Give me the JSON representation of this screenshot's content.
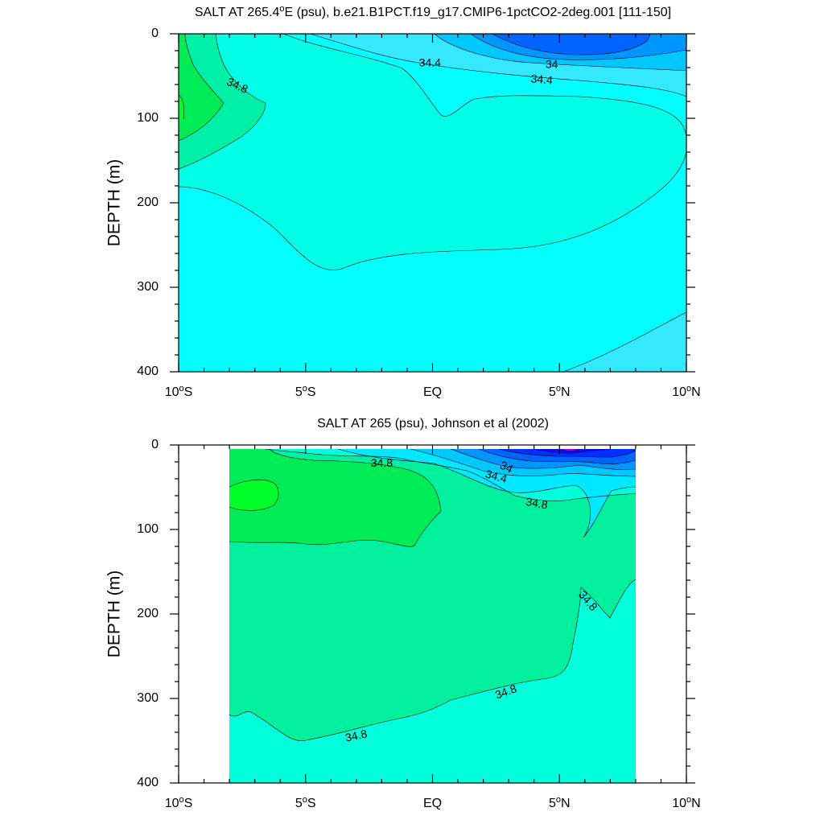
{
  "chart_data": [
    {
      "type": "contour",
      "title": "SALT AT 265.4°E (psu), b.e21.B1PCT.f19_g17.CMIP6-1pctCO2-2deg.001 [111-150]",
      "title_parts": {
        "pre": "SALT AT 265.4",
        "post": "E (psu), b.e21.B1PCT.f19_g17.CMIP6-1pctCO2-2deg.001 [111-150]"
      },
      "ylabel": "DEPTH (m)",
      "xlim": [
        -10,
        10
      ],
      "ylim": [
        400,
        0
      ],
      "x_ticks": [
        {
          "value": -10,
          "num": "10",
          "dir": "S"
        },
        {
          "value": -5,
          "num": "5",
          "dir": "S"
        },
        {
          "value": 0,
          "num": "EQ",
          "dir": ""
        },
        {
          "value": 5,
          "num": "5",
          "dir": "N"
        },
        {
          "value": 10,
          "num": "10",
          "dir": "N"
        }
      ],
      "y_ticks": [
        "0",
        "100",
        "200",
        "300",
        "400"
      ],
      "contour_labels": [
        {
          "text": "34.4",
          "x": -0.1,
          "y": 35,
          "angle": 0
        },
        {
          "text": "34",
          "x": 4.7,
          "y": 37,
          "angle": 0
        },
        {
          "text": "34.4",
          "x": 4.3,
          "y": 55,
          "angle": 5
        },
        {
          "text": "34.8",
          "x": -7.7,
          "y": 62,
          "angle": 25
        }
      ],
      "colors": {
        "s34_8_to_35": "#00f0a8",
        "s35_plus": "#00ec57",
        "s35_2_plus": "#00ff28",
        "s34_6": "#00ffe6",
        "s34_4": "#00fffe",
        "s34_2": "#33e8ff",
        "s34_0": "#00c8ff",
        "s33_8": "#0096ff",
        "s33_6": "#0064ff"
      }
    },
    {
      "type": "contour",
      "title": "SALT AT 265 (psu), Johnson et al (2002)",
      "ylabel": "DEPTH (m)",
      "xlim": [
        -10,
        10
      ],
      "ylim": [
        400,
        0
      ],
      "x_ticks": [
        {
          "value": -10,
          "num": "10",
          "dir": "S"
        },
        {
          "value": -5,
          "num": "5",
          "dir": "S"
        },
        {
          "value": 0,
          "num": "EQ",
          "dir": ""
        },
        {
          "value": 5,
          "num": "5",
          "dir": "N"
        },
        {
          "value": 10,
          "num": "10",
          "dir": "N"
        }
      ],
      "y_ticks": [
        "0",
        "100",
        "200",
        "300",
        "400"
      ],
      "data_xrange": [
        -8,
        8
      ],
      "contour_labels": [
        {
          "text": "34.8",
          "x": -2,
          "y": 22,
          "angle": 0
        },
        {
          "text": "34",
          "x": 2.9,
          "y": 27,
          "angle": 25
        },
        {
          "text": "34.4",
          "x": 2.5,
          "y": 38,
          "angle": 15
        },
        {
          "text": "34.8",
          "x": 4.1,
          "y": 70,
          "angle": 10
        },
        {
          "text": "34.8",
          "x": 6.1,
          "y": 185,
          "angle": 50
        },
        {
          "text": "34.8",
          "x": 2.9,
          "y": 293,
          "angle": -20
        },
        {
          "text": "34.8",
          "x": -3.0,
          "y": 345,
          "angle": -12
        }
      ],
      "colors": {
        "s34_6_to_34_8": "#00ffda",
        "s34_8_to_35": "#00f09e",
        "s35_plus": "#00ec57",
        "s35_2_plus": "#00ff28",
        "s34_4": "#00e8ff",
        "s34_2": "#00c8ff",
        "s34_0": "#0096ff",
        "s33_8": "#0064ff",
        "s33_6": "#0030ff",
        "s33_4": "#1010d0"
      }
    }
  ]
}
